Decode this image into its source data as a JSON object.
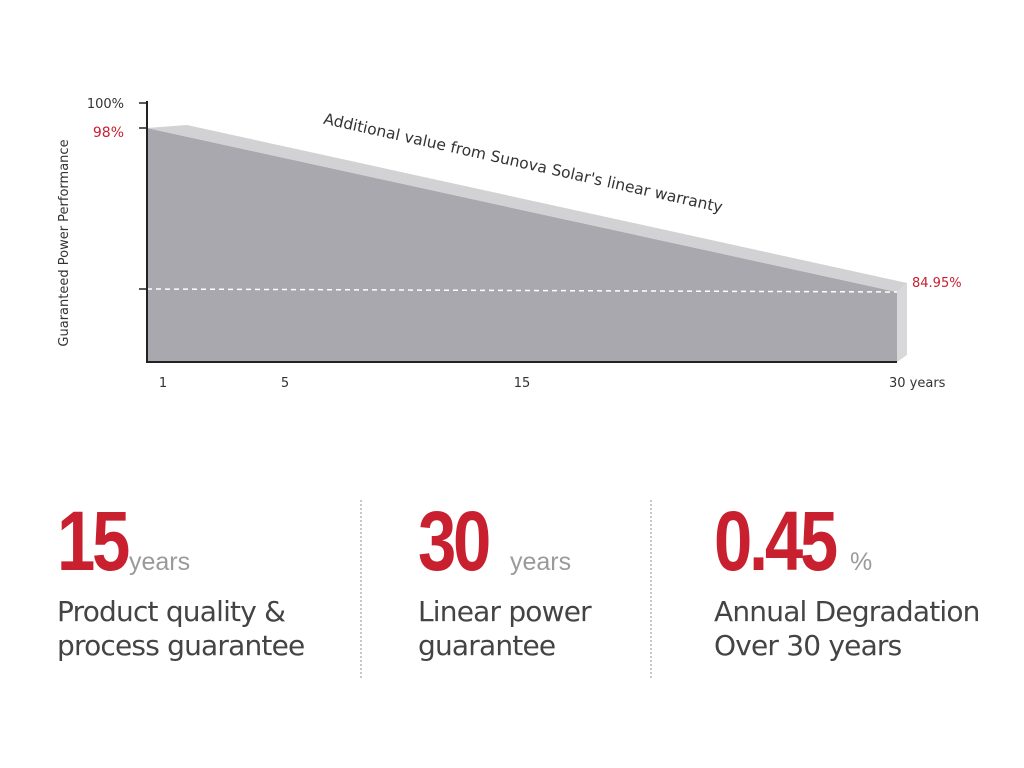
{
  "chart_data": {
    "type": "area",
    "ylabel": "Guaranteed Power Performance",
    "annotation": "Additional value from Sunova Solar's linear warranty",
    "x_ticks": [
      "1",
      "5",
      "15",
      "30 years"
    ],
    "y_ticks": [
      "100%"
    ],
    "series": [
      {
        "x": [
          1,
          30
        ],
        "y": [
          98,
          84.95
        ]
      }
    ],
    "baseline_y": 84.95,
    "value_labels": {
      "start": "98%",
      "end": "84.95%"
    },
    "colors": {
      "area": "#a8a8ae",
      "bevel": "#d0d0d2",
      "label_red": "#c8202f",
      "axis": "#222222"
    }
  },
  "stats": [
    {
      "value": "15",
      "unit": "years",
      "desc_line1": "Product quality &",
      "desc_line2": "process guarantee"
    },
    {
      "value": "30",
      "unit": "years",
      "desc_line1": "Linear power",
      "desc_line2": "guarantee"
    },
    {
      "value": "0.45",
      "unit": "%",
      "desc_line1": "Annual Degradation",
      "desc_line2": "Over 30 years"
    }
  ]
}
